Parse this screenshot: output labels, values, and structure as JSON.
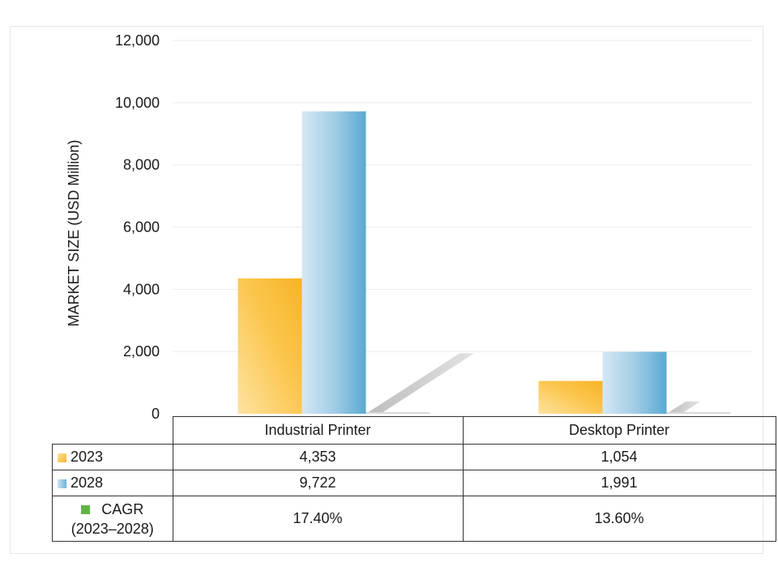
{
  "chart_data": {
    "type": "bar",
    "ylabel": "MARKET SIZE (USD Million)",
    "ylim": [
      0,
      12000
    ],
    "yticks": [
      "0",
      "2,000",
      "4,000",
      "6,000",
      "8,000",
      "10,000",
      "12,000"
    ],
    "categories": [
      "Industrial Printer",
      "Desktop Printer"
    ],
    "series": [
      {
        "name": "2023",
        "values": [
          4353,
          1054
        ],
        "labels": [
          "4,353",
          "1,054"
        ],
        "color": "#f9b934",
        "color_light": "#fde3a0"
      },
      {
        "name": "2028",
        "values": [
          9722,
          1991
        ],
        "labels": [
          "9,722",
          "1,991"
        ],
        "color": "#6ab1d6",
        "color_light": "#cfe5f3"
      },
      {
        "name": "CAGR",
        "name_line2": "(2023–2028)",
        "values": [
          17.4,
          13.6
        ],
        "labels": [
          "17.40%",
          "13.60%"
        ],
        "color": "#5fb546",
        "unit": "%"
      }
    ],
    "grid": true,
    "legend": "table-left"
  }
}
